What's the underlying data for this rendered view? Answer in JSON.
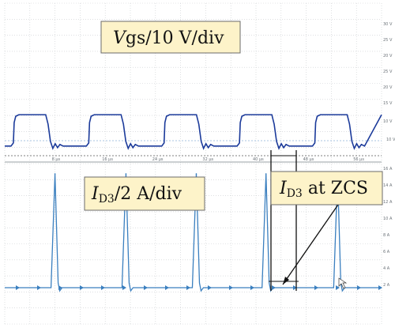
{
  "chart_data": {
    "type": "line",
    "title": "",
    "xlabel": "",
    "ylabel": "",
    "x_ticks": [
      "8 µs",
      "16 µs",
      "24 µs",
      "32 µs",
      "40 µs",
      "48 µs",
      "56 µs"
    ],
    "right_scale_top": [
      "30 V",
      "25 V",
      "20 V",
      "25 V",
      "20 V",
      "15 V",
      "10 V"
    ],
    "right_scale_bottom": [
      "16 A",
      "14 A",
      "12 A",
      "10 A",
      "8 A",
      "6 A",
      "4 A",
      "2 A"
    ],
    "vgs_baseline_label": "10 V",
    "x_range_us": [
      0,
      60
    ],
    "series": [
      {
        "name": "Vgs",
        "annotation": {
          "main": "V",
          "rest": "gs/10 V/div"
        },
        "color": "#1b3a9a",
        "pulse_period_us": 12,
        "pulse_starts_us": [
          1.5,
          13.5,
          25.5,
          37.5,
          49.5,
          61.5
        ],
        "pulse_width_us": 5.4,
        "high_div": 1.8,
        "low_div": 0.6
      },
      {
        "name": "ID3",
        "annotation": {
          "main": "I",
          "sub": "D3",
          "rest": "/2 A/div"
        },
        "color": "#3a7fbf",
        "spike_x_us": [
          8.0,
          19.3,
          30.5,
          41.6,
          53.0
        ],
        "spike_peak_A": 14.0,
        "baseline_A": 0.0
      }
    ],
    "annotations": [
      {
        "main": "I",
        "sub": "D3",
        "rest": " at ZCS"
      }
    ],
    "grid": true,
    "background": "#ffffff"
  }
}
